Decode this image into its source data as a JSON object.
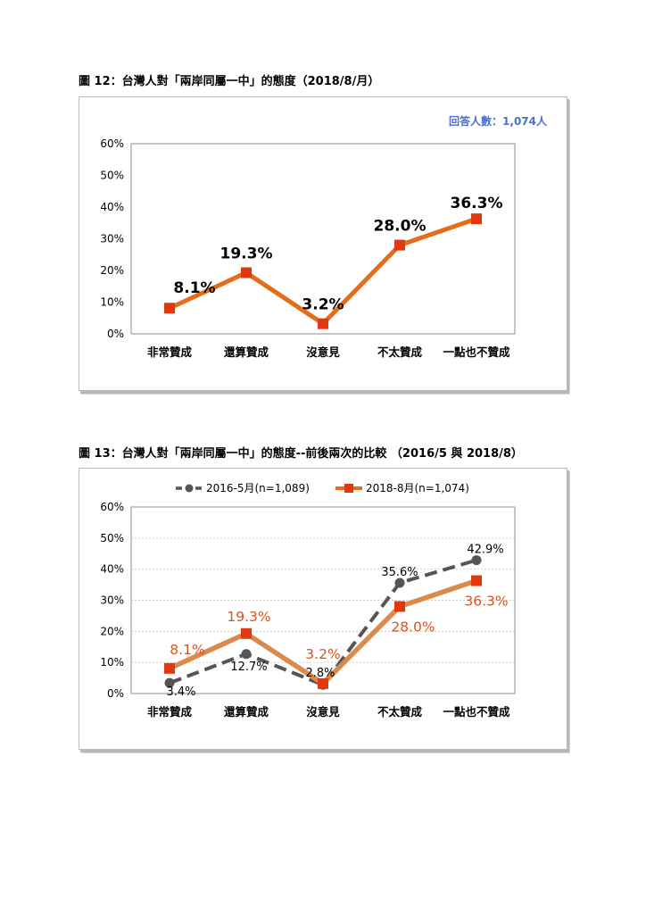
{
  "figure12": {
    "title": "圖 12：台灣人對「兩岸同屬一中」的態度（2018/8/月）",
    "sample_note": "回答人數：1,074人"
  },
  "figure13": {
    "title": "圖 13：台灣人對「兩岸同屬一中」的態度--前後兩次的比較 （2016/5 與 2018/8）"
  },
  "colors": {
    "orange": "#e46c1a",
    "marker_red": "#e0380f",
    "gray": "#555555",
    "label_orange": "#d9541e",
    "note_blue": "#4a6fd6"
  },
  "chart_data": [
    {
      "type": "line",
      "categories": [
        "非常贊成",
        "還算贊成",
        "沒意見",
        "不太贊成",
        "一點也不贊成"
      ],
      "series": [
        {
          "values": [
            8.1,
            19.3,
            3.2,
            28.0,
            36.3
          ],
          "labels": [
            "8.1%",
            "19.3%",
            "3.2%",
            "28.0%",
            "36.3%"
          ]
        }
      ],
      "yticks": [
        "0%",
        "10%",
        "20%",
        "30%",
        "40%",
        "50%",
        "60%"
      ],
      "ylim": [
        0,
        60
      ],
      "grid": false,
      "legend": "none"
    },
    {
      "type": "line",
      "categories": [
        "非常贊成",
        "還算贊成",
        "沒意見",
        "不太贊成",
        "一點也不贊成"
      ],
      "series": [
        {
          "name": "2016-5月(n=1,089)",
          "values": [
            3.4,
            12.7,
            2.8,
            35.6,
            42.9
          ],
          "labels": [
            "3.4%",
            "12.7%",
            "2.8%",
            "35.6%",
            "42.9%"
          ],
          "style": "dashed"
        },
        {
          "name": "2018-8月(n=1,074)",
          "values": [
            8.1,
            19.3,
            3.2,
            28.0,
            36.3
          ],
          "labels": [
            "8.1%",
            "19.3%",
            "3.2%",
            "28.0%",
            "36.3%"
          ],
          "style": "solid"
        }
      ],
      "yticks": [
        "0%",
        "10%",
        "20%",
        "30%",
        "40%",
        "50%",
        "60%"
      ],
      "ylim": [
        0,
        60
      ],
      "grid": true,
      "legend": "top"
    }
  ]
}
